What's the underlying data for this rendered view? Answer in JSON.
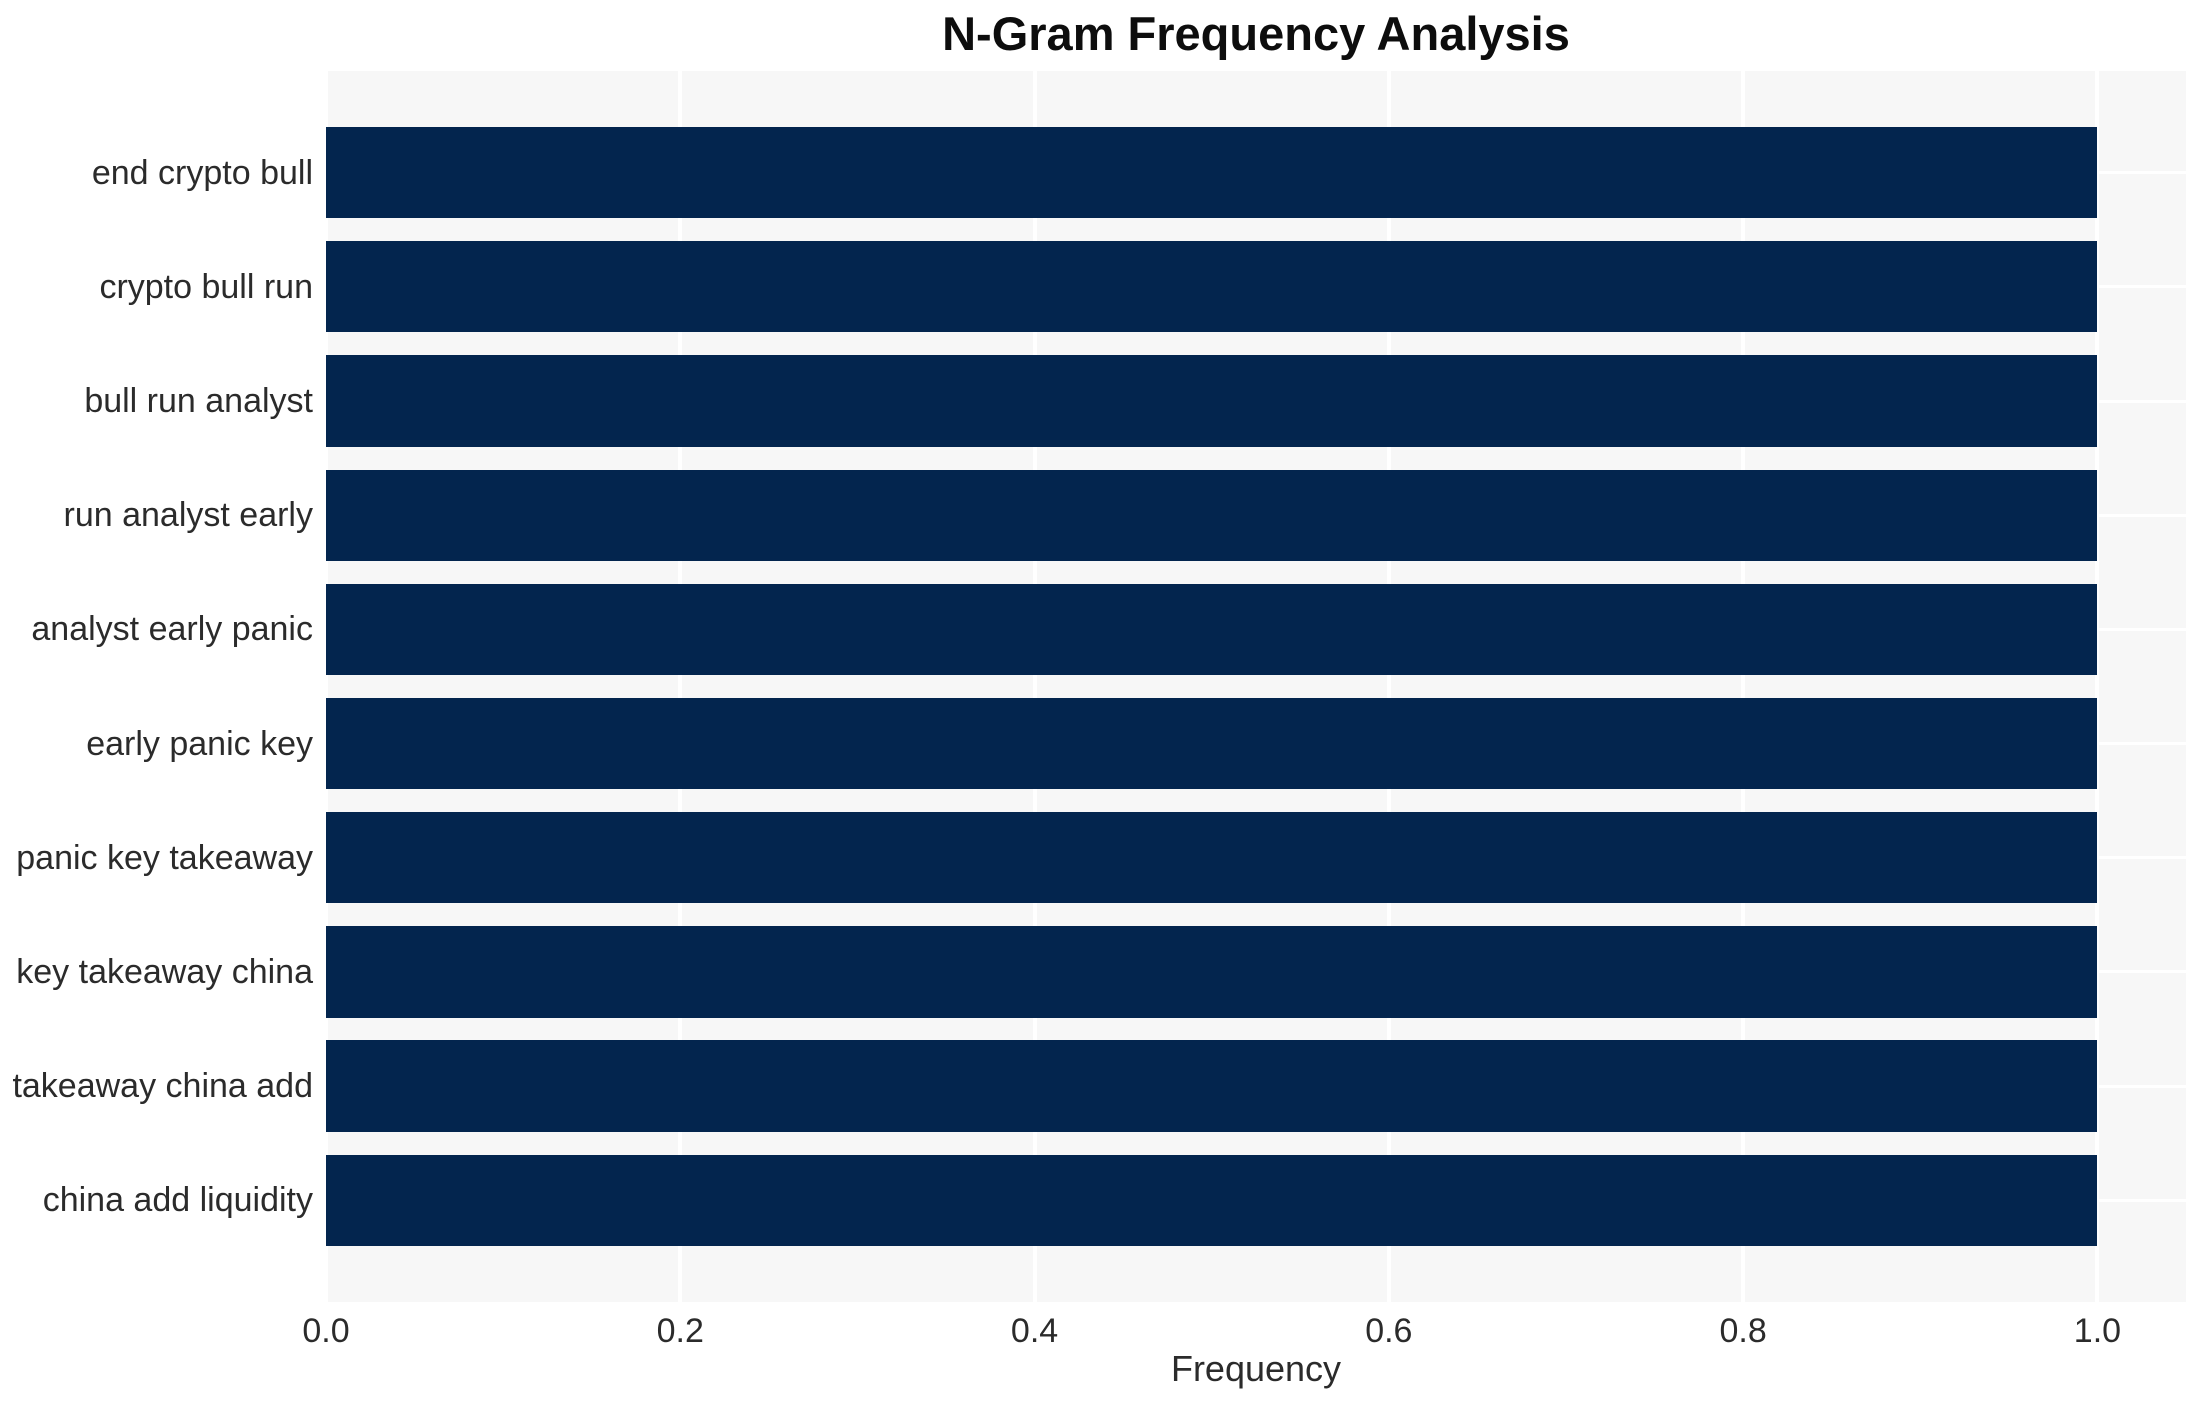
{
  "chart": {
    "title": "N-Gram Frequency Analysis",
    "xlabel": "Frequency",
    "colors": {
      "bar": "#03254e",
      "plot_background": "#f7f7f7",
      "grid": "#ffffff",
      "tick_text": "#2b2b2b",
      "title_text": "#0d0d0d",
      "page_background": "#ffffff"
    }
  },
  "chart_data": {
    "type": "bar",
    "orientation": "horizontal",
    "title": "N-Gram Frequency Analysis",
    "xlabel": "Frequency",
    "ylabel": "",
    "categories": [
      "end crypto bull",
      "crypto bull run",
      "bull run analyst",
      "run analyst early",
      "analyst early panic",
      "early panic key",
      "panic key takeaway",
      "key takeaway china",
      "takeaway china add",
      "china add liquidity"
    ],
    "values": [
      1.0,
      1.0,
      1.0,
      1.0,
      1.0,
      1.0,
      1.0,
      1.0,
      1.0,
      1.0
    ],
    "xlim": [
      0,
      1.05
    ],
    "xticks": [
      0.0,
      0.2,
      0.4,
      0.6,
      0.8,
      1.0
    ],
    "xtick_labels": [
      "0.0",
      "0.2",
      "0.4",
      "0.6",
      "0.8",
      "1.0"
    ],
    "grid": true,
    "legend": false
  }
}
